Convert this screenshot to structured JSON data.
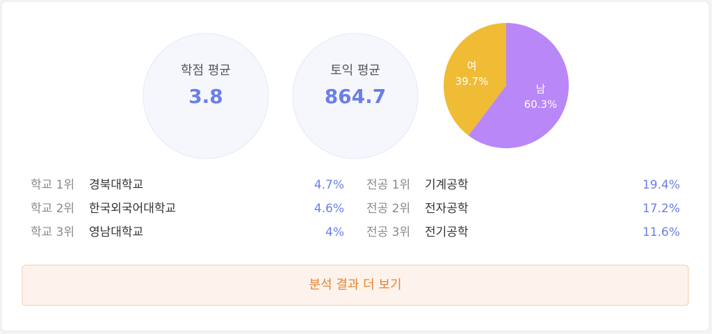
{
  "stats": [
    {
      "label": "학점 평균",
      "value": "3.8"
    },
    {
      "label": "토익 평균",
      "value": "864.7"
    }
  ],
  "chart_data": {
    "type": "pie",
    "categories": [
      "여",
      "남"
    ],
    "values": [
      39.7,
      60.3
    ],
    "value_labels": [
      "39.7%",
      "60.3%"
    ],
    "colors": [
      "#f0bc35",
      "#b987f7"
    ]
  },
  "schools": [
    {
      "rank": "학교 1위",
      "name": "경북대학교",
      "share": "4.7%"
    },
    {
      "rank": "학교 2위",
      "name": "한국외국어대학교",
      "share": "4.6%"
    },
    {
      "rank": "학교 3위",
      "name": "영남대학교",
      "share": "4%"
    }
  ],
  "majors": [
    {
      "rank": "전공 1위",
      "name": "기계공학",
      "share": "19.4%"
    },
    {
      "rank": "전공 2위",
      "name": "전자공학",
      "share": "17.2%"
    },
    {
      "rank": "전공 3위",
      "name": "전기공학",
      "share": "11.6%"
    }
  ],
  "button": "분석 결과 더 보기"
}
